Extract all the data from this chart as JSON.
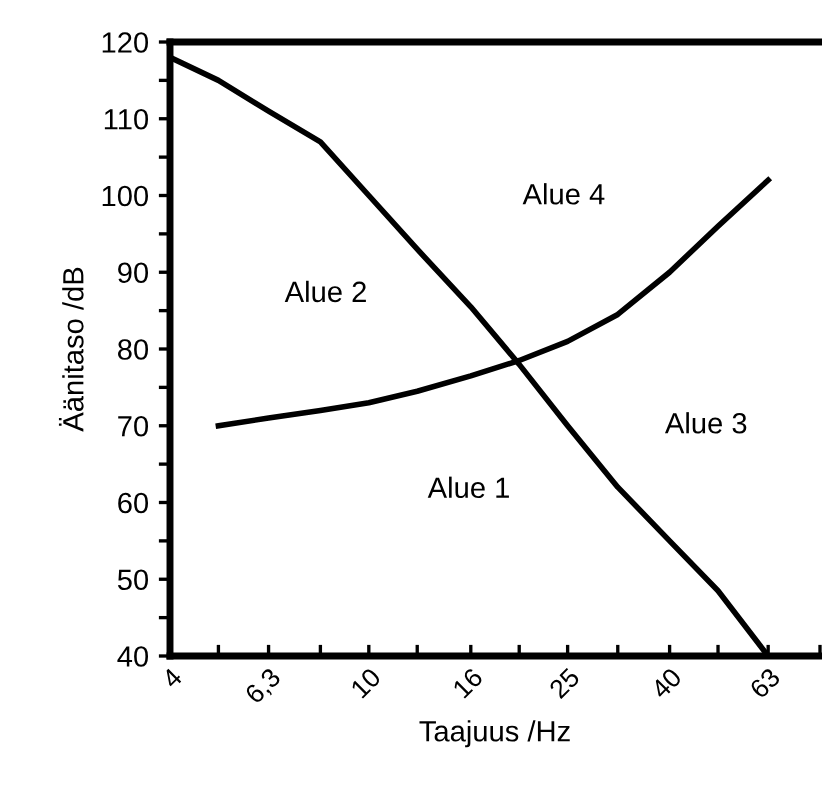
{
  "chart_data": {
    "type": "line",
    "xlabel": "Taajuus /Hz",
    "ylabel": "Äänitaso /dB",
    "log": "x",
    "xlim": [
      4,
      80
    ],
    "ylim": [
      40,
      120
    ],
    "x": [
      4,
      5,
      6.3,
      8,
      10,
      12.5,
      16,
      20,
      25,
      31.5,
      40,
      50,
      63
    ],
    "xticks": [
      4,
      {
        "value": 5,
        "label": null
      },
      {
        "value": 6.3,
        "label": "6,3"
      },
      {
        "value": 8,
        "label": null
      },
      10,
      {
        "value": 12.5,
        "label": null
      },
      16,
      {
        "value": 20,
        "label": null
      },
      25,
      {
        "value": 31.5,
        "label": null
      },
      40,
      {
        "value": 50,
        "label": null
      },
      63,
      {
        "value": 80,
        "label": null
      }
    ],
    "yticks": [
      40,
      {
        "value": 45,
        "label": null
      },
      50,
      {
        "value": 55,
        "label": null
      },
      60,
      {
        "value": 65,
        "label": null
      },
      70,
      {
        "value": 75,
        "label": null
      },
      80,
      {
        "value": 85,
        "label": null
      },
      90,
      {
        "value": 95,
        "label": null
      },
      100,
      {
        "value": 105,
        "label": null
      },
      110,
      {
        "value": 115,
        "label": null
      },
      120
    ],
    "series": [
      {
        "color": "#000000",
        "values": [
          118,
          115,
          111,
          107,
          100,
          93,
          85.5,
          78,
          70,
          62,
          55,
          48.5,
          40
        ]
      },
      {
        "color": "#000000",
        "values": [
          null,
          70,
          71,
          72,
          73,
          74.5,
          76.5,
          78.5,
          81,
          84.5,
          90,
          96,
          102
        ]
      }
    ],
    "annotations": [
      "Alue 1",
      "Alue 2",
      "Alue 3",
      "Alue 4"
    ],
    "grid": false,
    "legend": false,
    "marker": "none",
    "line_style": "solid"
  }
}
